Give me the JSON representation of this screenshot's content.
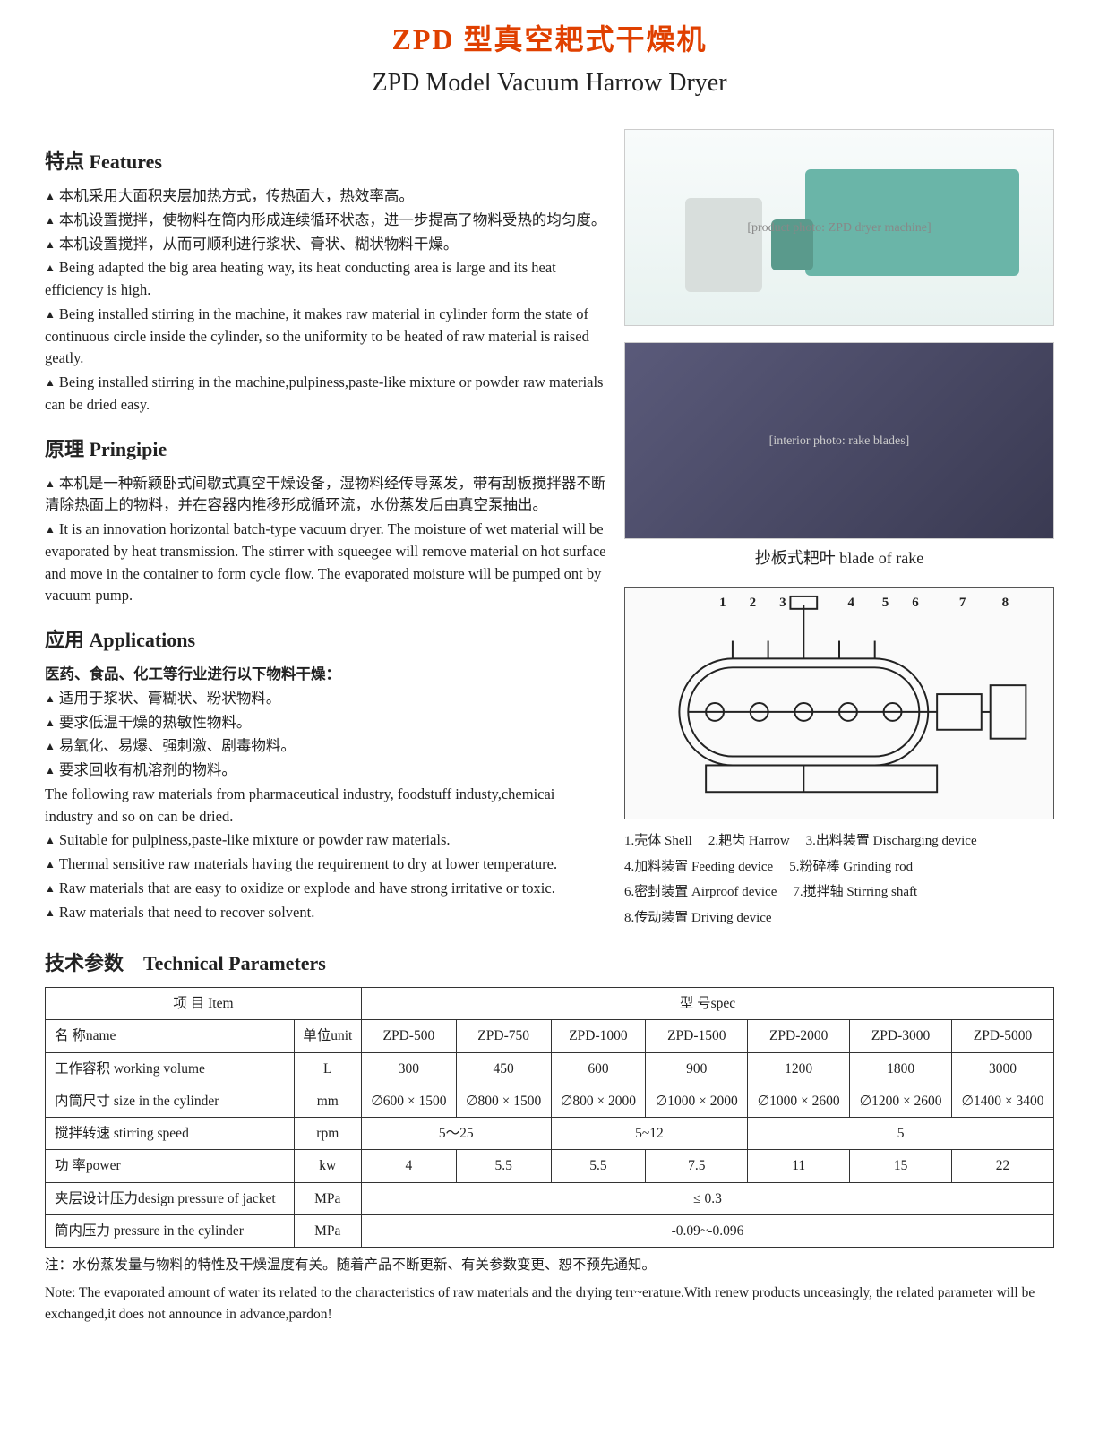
{
  "title_cn": "ZPD 型真空耙式干燥机",
  "title_en": "ZPD Model Vacuum Harrow Dryer",
  "colors": {
    "title_accent": "#e04000",
    "text": "#222222",
    "bg": "#ffffff",
    "table_border": "#333333"
  },
  "features": {
    "heading": "特点 Features",
    "items": [
      "本机采用大面积夹层加热方式，传热面大，热效率高。",
      "本机设置搅拌，使物料在筒内形成连续循环状态，进一步提高了物料受热的均匀度。",
      "本机设置搅拌，从而可顺利进行浆状、膏状、糊状物料干燥。",
      "Being adapted the big area heating way, its heat conducting area is large and its heat efficiency is high.",
      "Being installed stirring in the machine, it makes raw material in cylinder form the state of continuous circle inside the cylinder, so the uniformity to be heated of raw material is raised geatly.",
      "Being installed stirring in the machine,pulpiness,paste-like mixture or powder raw materials can be dried easy."
    ]
  },
  "principle": {
    "heading": "原理 Pringipie",
    "items": [
      "本机是一种新颖卧式间歇式真空干燥设备，湿物料经传导蒸发，带有刮板搅拌器不断清除热面上的物料，并在容器内推移形成循环流，水份蒸发后由真空泵抽出。",
      "It is an innovation horizontal batch-type vacuum dryer. The moisture of wet material will be evaporated by heat transmission. The stirrer with squeegee will remove material on hot surface and move in the container to form cycle flow. The evaporated moisture will be pumped ont by vacuum pump."
    ]
  },
  "applications": {
    "heading": "应用 Applications",
    "intro_cn": "医药、食品、化工等行业进行以下物料干燥：",
    "items_cn": [
      "适用于浆状、膏糊状、粉状物料。",
      "要求低温干燥的热敏性物料。",
      "易氧化、易爆、强刺激、剧毒物料。",
      "要求回收有机溶剂的物料。"
    ],
    "intro_en": "The following raw materials from pharmaceutical industry, foodstuff industy,chemicai industry and so on can be dried.",
    "items_en": [
      "Suitable for pulpiness,paste-like mixture or powder raw materials.",
      "Thermal sensitive raw materials having the requirement to dry at lower temperature.",
      "Raw materials that are easy to oxidize or explode and have strong irritative or toxic.",
      "Raw materials that need to recover solvent."
    ]
  },
  "right": {
    "img1_alt": "[product photo: ZPD dryer machine]",
    "img2_alt": "[interior photo: rake blades]",
    "img2_caption": "抄板式耙叶 blade of rake",
    "diagram_numbers": [
      "1",
      "2",
      "3",
      "4",
      "5",
      "6",
      "7",
      "8"
    ],
    "diagram_number_positions_pct": [
      22,
      29,
      36,
      52,
      60,
      67,
      78,
      88
    ],
    "diagram_legend": [
      "1.壳体 Shell",
      "2.耙齿 Harrow",
      "3.出料装置 Discharging device",
      "4.加料装置 Feeding device",
      "5.粉碎棒 Grinding rod",
      "6.密封装置 Airproof device",
      "7.搅拌轴 Stirring shaft",
      "8.传动装置 Driving device"
    ]
  },
  "tech": {
    "heading": "技术参数　Technical Parameters",
    "header_item": "项 目 Item",
    "header_spec": "型 号spec",
    "col_name": "名 称name",
    "col_unit": "单位unit",
    "models": [
      "ZPD-500",
      "ZPD-750",
      "ZPD-1000",
      "ZPD-1500",
      "ZPD-2000",
      "ZPD-3000",
      "ZPD-5000"
    ],
    "rows": [
      {
        "label": "工作容积 working volume",
        "unit": "L",
        "cells": [
          "300",
          "450",
          "600",
          "900",
          "1200",
          "1800",
          "3000"
        ],
        "spans": [
          1,
          1,
          1,
          1,
          1,
          1,
          1
        ]
      },
      {
        "label": "内筒尺寸 size in the cylinder",
        "unit": "mm",
        "cells": [
          "∅600 × 1500",
          "∅800 × 1500",
          "∅800 × 2000",
          "∅1000 × 2000",
          "∅1000 × 2600",
          "∅1200 × 2600",
          "∅1400 × 3400"
        ],
        "spans": [
          1,
          1,
          1,
          1,
          1,
          1,
          1
        ]
      },
      {
        "label": "搅拌转速 stirring speed",
        "unit": "rpm",
        "cells": [
          "5～25",
          "5~12",
          "5"
        ],
        "spans": [
          2,
          2,
          3
        ]
      },
      {
        "label": "功 率power",
        "unit": "kw",
        "cells": [
          "4",
          "5.5",
          "5.5",
          "7.5",
          "11",
          "15",
          "22"
        ],
        "spans": [
          1,
          1,
          1,
          1,
          1,
          1,
          1
        ]
      },
      {
        "label": "夹层设计压力design pressure of jacket",
        "unit": "MPa",
        "cells": [
          "≤ 0.3"
        ],
        "spans": [
          7
        ]
      },
      {
        "label": "筒内压力 pressure in the cylinder",
        "unit": "MPa",
        "cells": [
          "-0.09~-0.096"
        ],
        "spans": [
          7
        ]
      }
    ],
    "note_cn": "注：水份蒸发量与物料的特性及干燥温度有关。随着产品不断更新、有关参数变更、恕不预先通知。",
    "note_en": "Note: The evaporated amount of water its related to the characteristics of raw materials and the drying terr~erature.With renew products unceasingly, the related parameter will be exchanged,it does not announce in advance,pardon!"
  }
}
